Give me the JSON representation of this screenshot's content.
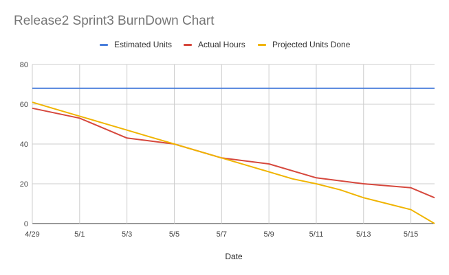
{
  "chart_data": {
    "type": "line",
    "title": "Release2 Sprint3 BurnDown Chart",
    "xlabel": "Date",
    "ylabel": "",
    "x": [
      "4/29",
      "4/30",
      "5/1",
      "5/2",
      "5/3",
      "5/4",
      "5/5",
      "5/6",
      "5/7",
      "5/8",
      "5/9",
      "5/10",
      "5/11",
      "5/12",
      "5/13",
      "5/14",
      "5/15",
      "5/16"
    ],
    "x_ticks": [
      "4/29",
      "5/1",
      "5/3",
      "5/5",
      "5/7",
      "5/9",
      "5/11",
      "5/13",
      "5/15"
    ],
    "ylim": [
      0,
      80
    ],
    "y_ticks": [
      0,
      20,
      40,
      60,
      80
    ],
    "grid": true,
    "legend_position": "top",
    "series": [
      {
        "name": "Estimated Units",
        "color": "#4a7fdc",
        "values": [
          68,
          68,
          68,
          68,
          68,
          68,
          68,
          68,
          68,
          68,
          68,
          68,
          68,
          68,
          68,
          68,
          68,
          68
        ]
      },
      {
        "name": "Actual Hours",
        "color": "#d6483d",
        "values": [
          58,
          null,
          53,
          null,
          43,
          null,
          40,
          null,
          33,
          null,
          30,
          null,
          23,
          null,
          20,
          null,
          18,
          13
        ]
      },
      {
        "name": "Projected Units Done",
        "color": "#f0b400",
        "values": [
          61,
          57.5,
          54,
          50.5,
          47,
          43.5,
          40,
          36.5,
          33,
          29.5,
          26,
          22.5,
          20,
          17,
          13,
          10,
          7,
          0
        ]
      }
    ]
  }
}
